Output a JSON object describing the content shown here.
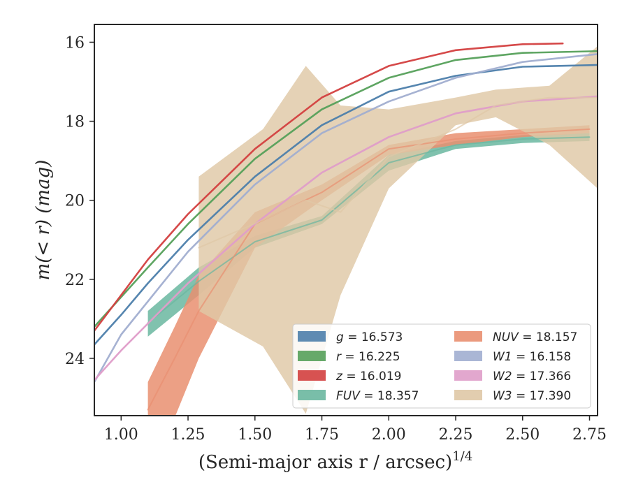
{
  "chart_data": {
    "type": "line",
    "title": "",
    "xlabel": "(Semi-major axis r / arcsec)",
    "xlabel_exponent": "1/4",
    "ylabel": "m(< r) (mag)",
    "xlim": [
      0.9,
      2.78
    ],
    "ylim": [
      25.45,
      15.55
    ],
    "y_inverted": true,
    "grid": false,
    "legend_position": "lower-right",
    "x_ticks": [
      1.0,
      1.25,
      1.5,
      1.75,
      2.0,
      2.25,
      2.5,
      2.75
    ],
    "x_tick_labels": [
      "1.00",
      "1.25",
      "1.50",
      "1.75",
      "2.00",
      "2.25",
      "2.50",
      "2.75"
    ],
    "y_ticks": [
      16,
      18,
      20,
      22,
      24
    ],
    "y_tick_labels": [
      "16",
      "18",
      "20",
      "22",
      "24"
    ],
    "series": [
      {
        "key": "g",
        "legend_var": "g",
        "legend_value": "= 16.573",
        "color": "#4c7eab",
        "x": [
          0.9,
          1.0,
          1.1,
          1.25,
          1.5,
          1.75,
          2.0,
          2.25,
          2.5,
          2.75,
          2.78
        ],
        "y": [
          23.65,
          22.9,
          22.1,
          21.0,
          19.4,
          18.1,
          17.25,
          16.85,
          16.62,
          16.58,
          16.573
        ]
      },
      {
        "key": "r",
        "legend_var": "r",
        "legend_value": "= 16.225",
        "color": "#55a05a",
        "x": [
          0.9,
          1.0,
          1.1,
          1.25,
          1.5,
          1.75,
          2.0,
          2.25,
          2.5,
          2.75,
          2.78
        ],
        "y": [
          23.2,
          22.45,
          21.7,
          20.6,
          18.95,
          17.7,
          16.9,
          16.45,
          16.27,
          16.23,
          16.225
        ]
      },
      {
        "key": "z",
        "legend_var": "z",
        "legend_value": "= 16.019",
        "color": "#d33f3f",
        "x": [
          0.9,
          1.0,
          1.1,
          1.25,
          1.5,
          1.75,
          2.0,
          2.25,
          2.5,
          2.65
        ],
        "y": [
          23.3,
          22.4,
          21.5,
          20.35,
          18.7,
          17.4,
          16.6,
          16.2,
          16.05,
          16.03
        ]
      },
      {
        "key": "FUV",
        "legend_var": "FUV",
        "legend_value": "= 18.357",
        "color": "#6ab7a0",
        "x": [
          1.1,
          1.29,
          1.5,
          1.75,
          2.0,
          2.25,
          2.5,
          2.75
        ],
        "y": [
          23.1,
          22.05,
          21.05,
          20.5,
          19.05,
          18.6,
          18.45,
          18.4
        ],
        "band_lower": [
          22.8,
          21.7,
          20.9,
          20.4,
          18.85,
          18.5,
          18.35,
          18.3
        ],
        "band_upper": [
          23.45,
          22.4,
          21.2,
          20.6,
          19.25,
          18.7,
          18.55,
          18.5
        ]
      },
      {
        "key": "NUV",
        "legend_var": "NUV",
        "legend_value": "= 18.157",
        "color": "#e98f70",
        "x": [
          1.1,
          1.2,
          1.29,
          1.5,
          1.75,
          2.0,
          2.25,
          2.5,
          2.75
        ],
        "y": [
          25.3,
          24.0,
          22.8,
          20.6,
          19.8,
          18.7,
          18.45,
          18.3,
          18.2
        ],
        "band_lower": [
          24.6,
          23.2,
          21.9,
          20.3,
          19.6,
          18.6,
          18.3,
          18.2,
          18.1
        ],
        "band_upper": [
          25.5,
          25.5,
          24.0,
          21.2,
          20.0,
          18.85,
          18.6,
          18.4,
          18.3
        ]
      },
      {
        "key": "W1",
        "legend_var": "W1",
        "legend_value": "= 16.158",
        "color": "#a1aed0",
        "x": [
          0.9,
          1.0,
          1.25,
          1.5,
          1.75,
          2.0,
          2.25,
          2.5,
          2.78
        ],
        "y": [
          24.6,
          23.4,
          21.3,
          19.6,
          18.3,
          17.5,
          16.9,
          16.5,
          16.3
        ]
      },
      {
        "key": "W2",
        "legend_var": "W2",
        "legend_value": "= 17.366",
        "color": "#df9dc9",
        "x": [
          0.9,
          1.0,
          1.25,
          1.5,
          1.75,
          2.0,
          2.25,
          2.5,
          2.78
        ],
        "y": [
          24.55,
          23.8,
          22.1,
          20.6,
          19.3,
          18.4,
          17.8,
          17.5,
          17.37
        ]
      },
      {
        "key": "W3",
        "legend_var": "W3",
        "legend_value": "= 17.390",
        "color": "#dfc8a6",
        "x": [
          1.29,
          1.53,
          1.69,
          1.82,
          2.0,
          2.25,
          2.4,
          2.6,
          2.78
        ],
        "y": [
          21.2,
          20.5,
          20.0,
          20.3,
          18.9,
          18.2,
          17.6,
          17.4,
          17.4
        ],
        "band_lower": [
          22.8,
          23.7,
          25.4,
          22.4,
          19.7,
          18.1,
          17.9,
          18.6,
          19.7
        ],
        "band_upper": [
          19.4,
          18.2,
          16.6,
          17.6,
          17.7,
          17.4,
          17.2,
          17.1,
          16.1
        ]
      }
    ]
  }
}
